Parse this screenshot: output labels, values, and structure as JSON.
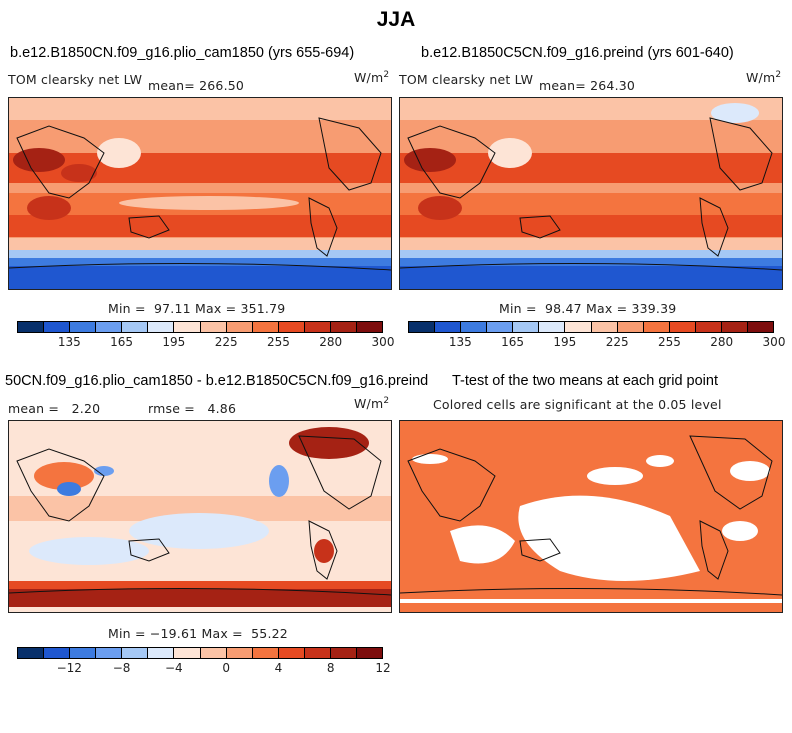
{
  "title": "JJA",
  "colors": {
    "abs_scale": [
      "#08306b",
      "#1f57d0",
      "#3d7be0",
      "#6b9ef0",
      "#a5c8f5",
      "#dce9fb",
      "#fde4d6",
      "#fbc3a6",
      "#f79c72",
      "#f4743f",
      "#e64a22",
      "#c7321a",
      "#a52214",
      "#7d0d0d"
    ],
    "diff_scale": [
      "#08306b",
      "#1f57d0",
      "#3d7be0",
      "#6b9ef0",
      "#a5c8f5",
      "#dce9fb",
      "#fde4d6",
      "#fbc3a6",
      "#f79c72",
      "#f4743f",
      "#e64a22",
      "#c7321a",
      "#a52214",
      "#7d0d0d"
    ],
    "significant": "#f4743f"
  },
  "chart_data": [
    {
      "type": "heatmap",
      "title": "b.e12.B1850CN.f09_g16.plio_cam1850 (yrs 655-694)",
      "variable": "TOM clearsky net LW",
      "mean_label": "mean=",
      "mean": "266.50",
      "units": "W/m",
      "units_sup": "2",
      "min_label": "Min =",
      "min": "97.11",
      "max_label": "Max =",
      "max": "351.79",
      "colorbar_ticks": [
        "135",
        "165",
        "195",
        "225",
        "255",
        "280",
        "300"
      ]
    },
    {
      "type": "heatmap",
      "title": "b.e12.B1850C5CN.f09_g16.preind (yrs 601-640)",
      "variable": "TOM clearsky net LW",
      "mean_label": "mean=",
      "mean": "264.30",
      "units": "W/m",
      "units_sup": "2",
      "min_label": "Min =",
      "min": "98.47",
      "max_label": "Max =",
      "max": "339.39",
      "colorbar_ticks": [
        "135",
        "165",
        "195",
        "225",
        "255",
        "280",
        "300"
      ]
    },
    {
      "type": "heatmap",
      "title": "50CN.f09_g16.plio_cam1850 - b.e12.B1850C5CN.f09_g16.preind",
      "mean_label": "mean =",
      "mean": "2.20",
      "rmse_label": "rmse =",
      "rmse": "4.86",
      "units": "W/m",
      "units_sup": "2",
      "min_label": "Min =",
      "min": "−19.61",
      "max_label": "Max =",
      "max": "55.22",
      "colorbar_ticks": [
        "−12",
        "−8",
        "−4",
        "0",
        "4",
        "8",
        "12"
      ]
    },
    {
      "type": "heatmap",
      "title": "T-test of the two means at each grid point",
      "subtitle": "Colored cells are significant at the 0.05 level"
    }
  ]
}
